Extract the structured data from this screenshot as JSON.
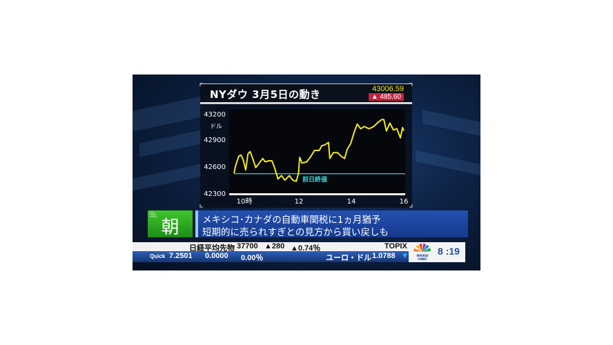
{
  "title": "NYダウ 3月5日の動き",
  "quote": {
    "price": "43006.59",
    "change": "▲ 485.60",
    "change_color": "#c8203c"
  },
  "chart_data": {
    "type": "line",
    "title": "NYダウ 3月5日の動き",
    "ylabel": "ドル",
    "ylim": [
      42300,
      43200
    ],
    "yticks": [
      "43200",
      "42900",
      "42600",
      "42300"
    ],
    "xlim": [
      "09:30",
      "16:00"
    ],
    "xticks": [
      "10時",
      "12",
      "14",
      "16"
    ],
    "grid": false,
    "line_color": "#f4e81c",
    "reference_line": {
      "label": "前日終値",
      "value": 42521,
      "color": "#3fd6d6"
    },
    "x": [
      "09:30",
      "09:34",
      "09:41",
      "09:46",
      "09:51",
      "09:57",
      "10:02",
      "10:07",
      "10:12",
      "10:20",
      "10:28",
      "10:36",
      "10:42",
      "10:50",
      "10:57",
      "11:03",
      "11:11",
      "11:19",
      "11:27",
      "11:37",
      "11:45",
      "11:53",
      "11:58",
      "12:01",
      "12:06",
      "12:17",
      "12:25",
      "12:35",
      "12:46",
      "12:51",
      "12:59",
      "13:07",
      "13:10",
      "13:18",
      "13:28",
      "13:36",
      "13:44",
      "13:50",
      "13:58",
      "14:06",
      "14:13",
      "14:21",
      "14:29",
      "14:40",
      "14:51",
      "14:59",
      "15:09",
      "15:14",
      "15:20",
      "15:28",
      "15:36",
      "15:44",
      "15:52",
      "15:57",
      "16:00"
    ],
    "y": [
      42526,
      42616,
      42720,
      42733,
      42681,
      42564,
      42746,
      42772,
      42707,
      42590,
      42642,
      42694,
      42655,
      42668,
      42668,
      42590,
      42461,
      42500,
      42448,
      42500,
      42448,
      42435,
      42526,
      42707,
      42642,
      42655,
      42707,
      42785,
      42785,
      42837,
      42850,
      42876,
      42694,
      42759,
      42759,
      42720,
      42694,
      42798,
      42863,
      42993,
      43083,
      43031,
      43057,
      43031,
      43057,
      43096,
      43135,
      43135,
      43005,
      43096,
      43018,
      43031,
      42928,
      43044,
      43007
    ]
  },
  "banner": {
    "logo_text": "LIVE FROM TOKYO",
    "program": "朝",
    "line1": "メキシコ･カナダの自動車関税に1ヵ月猶予",
    "line2": "短期的に売られすぎとの見方から買い戻しも"
  },
  "ticker": {
    "nikkei_label": "日経平均先物",
    "nikkei_value": "37700",
    "nikkei_change": "▲280",
    "nikkei_pct": "▲0.74％",
    "topix_label": "TOPIX",
    "quick_label": "Quick",
    "quick_value": "7.2501",
    "quick_change": "0.0000",
    "quick_pct": "0.00％",
    "eur_label": "ユーロ・ドル",
    "eur_value": "1.0788",
    "eur_arrow": "▼"
  },
  "station": {
    "logo_text": "NIKKEI CNBC",
    "clock": "8 :19"
  }
}
